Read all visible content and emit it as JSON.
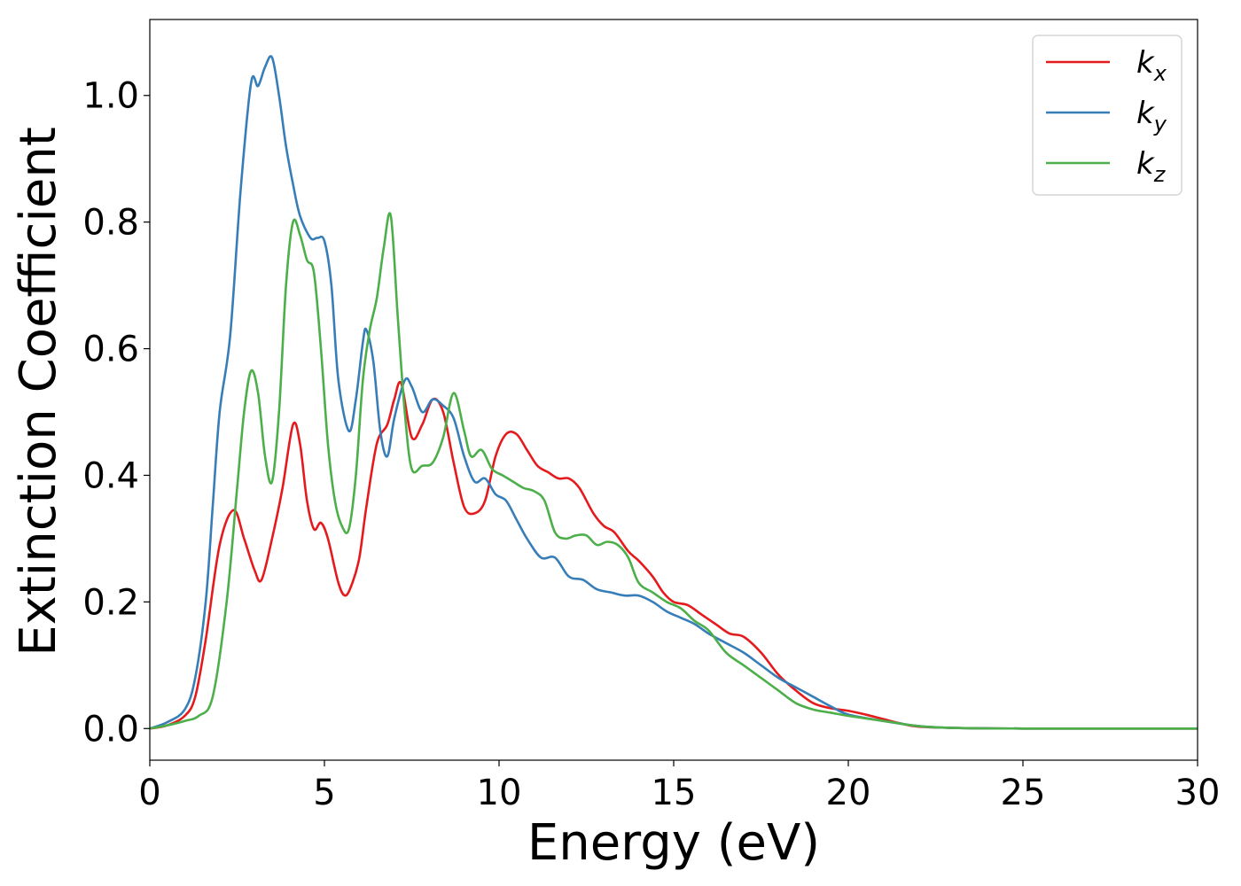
{
  "chart_data": {
    "type": "line",
    "xlabel": "Energy (eV)",
    "ylabel": "Extinction Coefficient",
    "xlim": [
      0,
      30
    ],
    "ylim": [
      -0.05,
      1.12
    ],
    "xticks": [
      0,
      5,
      10,
      15,
      20,
      25,
      30
    ],
    "xtick_labels": [
      "0",
      "5",
      "10",
      "15",
      "20",
      "25",
      "30"
    ],
    "yticks": [
      0.0,
      0.2,
      0.4,
      0.6,
      0.8,
      1.0
    ],
    "ytick_labels": [
      "0.0",
      "0.2",
      "0.4",
      "0.6",
      "0.8",
      "1.0"
    ],
    "grid": false,
    "legend_position": "top-right",
    "series": [
      {
        "name": "k_x",
        "label_base": "k",
        "label_sub": "x",
        "color": "#e41a1c",
        "x": [
          0,
          0.5,
          1.0,
          1.3,
          1.6,
          2.0,
          2.4,
          2.7,
          3.0,
          3.2,
          3.5,
          3.8,
          4.1,
          4.3,
          4.5,
          4.7,
          4.9,
          5.1,
          5.4,
          5.6,
          5.8,
          6.0,
          6.2,
          6.5,
          6.8,
          7.0,
          7.2,
          7.5,
          7.8,
          8.1,
          8.4,
          8.7,
          9.0,
          9.3,
          9.6,
          9.9,
          10.2,
          10.5,
          10.8,
          11.1,
          11.4,
          11.7,
          12.0,
          12.3,
          12.7,
          13.0,
          13.3,
          13.7,
          14.0,
          14.4,
          14.7,
          15.0,
          15.4,
          15.8,
          16.2,
          16.6,
          17.0,
          17.5,
          18.0,
          18.5,
          19.0,
          19.5,
          20.0,
          20.5,
          21.0,
          21.5,
          22.0,
          23.0,
          25.0,
          30.0
        ],
        "y": [
          0.0,
          0.005,
          0.02,
          0.05,
          0.14,
          0.29,
          0.345,
          0.3,
          0.25,
          0.235,
          0.3,
          0.38,
          0.48,
          0.45,
          0.36,
          0.315,
          0.325,
          0.3,
          0.23,
          0.21,
          0.23,
          0.27,
          0.35,
          0.45,
          0.48,
          0.52,
          0.545,
          0.46,
          0.48,
          0.52,
          0.5,
          0.42,
          0.35,
          0.34,
          0.36,
          0.43,
          0.465,
          0.465,
          0.44,
          0.415,
          0.405,
          0.395,
          0.395,
          0.38,
          0.34,
          0.32,
          0.31,
          0.28,
          0.265,
          0.24,
          0.215,
          0.2,
          0.195,
          0.18,
          0.165,
          0.15,
          0.145,
          0.12,
          0.085,
          0.06,
          0.04,
          0.032,
          0.028,
          0.022,
          0.015,
          0.008,
          0.003,
          0.001,
          0.0,
          0.0
        ]
      },
      {
        "name": "k_y",
        "label_base": "k",
        "label_sub": "y",
        "color": "#377eb8",
        "x": [
          0,
          0.5,
          1.0,
          1.3,
          1.6,
          1.8,
          2.0,
          2.3,
          2.6,
          2.9,
          3.1,
          3.3,
          3.5,
          3.7,
          3.9,
          4.1,
          4.3,
          4.6,
          4.8,
          5.0,
          5.2,
          5.4,
          5.7,
          5.9,
          6.1,
          6.2,
          6.4,
          6.6,
          6.8,
          7.0,
          7.3,
          7.5,
          7.8,
          8.1,
          8.4,
          8.7,
          9.0,
          9.3,
          9.6,
          9.9,
          10.2,
          10.5,
          10.8,
          11.2,
          11.6,
          12.0,
          12.4,
          12.8,
          13.2,
          13.6,
          14.0,
          14.4,
          14.8,
          15.2,
          15.6,
          16.0,
          16.5,
          17.0,
          17.5,
          18.0,
          18.5,
          19.0,
          19.5,
          20.0,
          21.0,
          22.0,
          23.0,
          25.0,
          30.0
        ],
        "y": [
          0.0,
          0.01,
          0.03,
          0.08,
          0.2,
          0.35,
          0.5,
          0.62,
          0.85,
          1.02,
          1.015,
          1.045,
          1.06,
          1.0,
          0.92,
          0.86,
          0.81,
          0.775,
          0.775,
          0.77,
          0.7,
          0.55,
          0.47,
          0.52,
          0.61,
          0.63,
          0.58,
          0.47,
          0.43,
          0.49,
          0.55,
          0.54,
          0.5,
          0.52,
          0.51,
          0.49,
          0.43,
          0.39,
          0.395,
          0.37,
          0.36,
          0.33,
          0.3,
          0.27,
          0.27,
          0.24,
          0.235,
          0.22,
          0.215,
          0.21,
          0.21,
          0.2,
          0.185,
          0.175,
          0.165,
          0.15,
          0.135,
          0.12,
          0.1,
          0.08,
          0.065,
          0.05,
          0.035,
          0.022,
          0.012,
          0.004,
          0.001,
          0.0,
          0.0
        ]
      },
      {
        "name": "k_z",
        "label_base": "k",
        "label_sub": "z",
        "color": "#4daf4a",
        "x": [
          0,
          0.5,
          1.0,
          1.4,
          1.8,
          2.2,
          2.5,
          2.7,
          2.9,
          3.1,
          3.3,
          3.5,
          3.7,
          3.9,
          4.1,
          4.3,
          4.5,
          4.7,
          4.9,
          5.1,
          5.3,
          5.5,
          5.7,
          5.9,
          6.1,
          6.3,
          6.5,
          6.7,
          6.9,
          7.1,
          7.3,
          7.5,
          7.8,
          8.1,
          8.4,
          8.7,
          9.0,
          9.2,
          9.5,
          9.8,
          10.1,
          10.4,
          10.7,
          11.0,
          11.3,
          11.6,
          11.9,
          12.2,
          12.5,
          12.8,
          13.1,
          13.4,
          13.7,
          14.0,
          14.4,
          14.8,
          15.2,
          15.6,
          16.0,
          16.5,
          17.0,
          17.5,
          18.0,
          18.5,
          19.0,
          19.5,
          20.0,
          21.0,
          22.0,
          23.0,
          25.0,
          30.0
        ],
        "y": [
          0.0,
          0.005,
          0.012,
          0.02,
          0.05,
          0.2,
          0.38,
          0.5,
          0.565,
          0.53,
          0.43,
          0.39,
          0.5,
          0.7,
          0.8,
          0.78,
          0.74,
          0.72,
          0.6,
          0.45,
          0.36,
          0.32,
          0.315,
          0.4,
          0.55,
          0.63,
          0.68,
          0.76,
          0.81,
          0.65,
          0.5,
          0.41,
          0.415,
          0.42,
          0.46,
          0.53,
          0.47,
          0.43,
          0.44,
          0.41,
          0.4,
          0.39,
          0.38,
          0.375,
          0.36,
          0.31,
          0.3,
          0.305,
          0.305,
          0.29,
          0.295,
          0.29,
          0.27,
          0.23,
          0.215,
          0.2,
          0.19,
          0.17,
          0.155,
          0.12,
          0.1,
          0.08,
          0.06,
          0.04,
          0.03,
          0.025,
          0.02,
          0.012,
          0.004,
          0.001,
          0.0,
          0.0
        ]
      }
    ]
  }
}
